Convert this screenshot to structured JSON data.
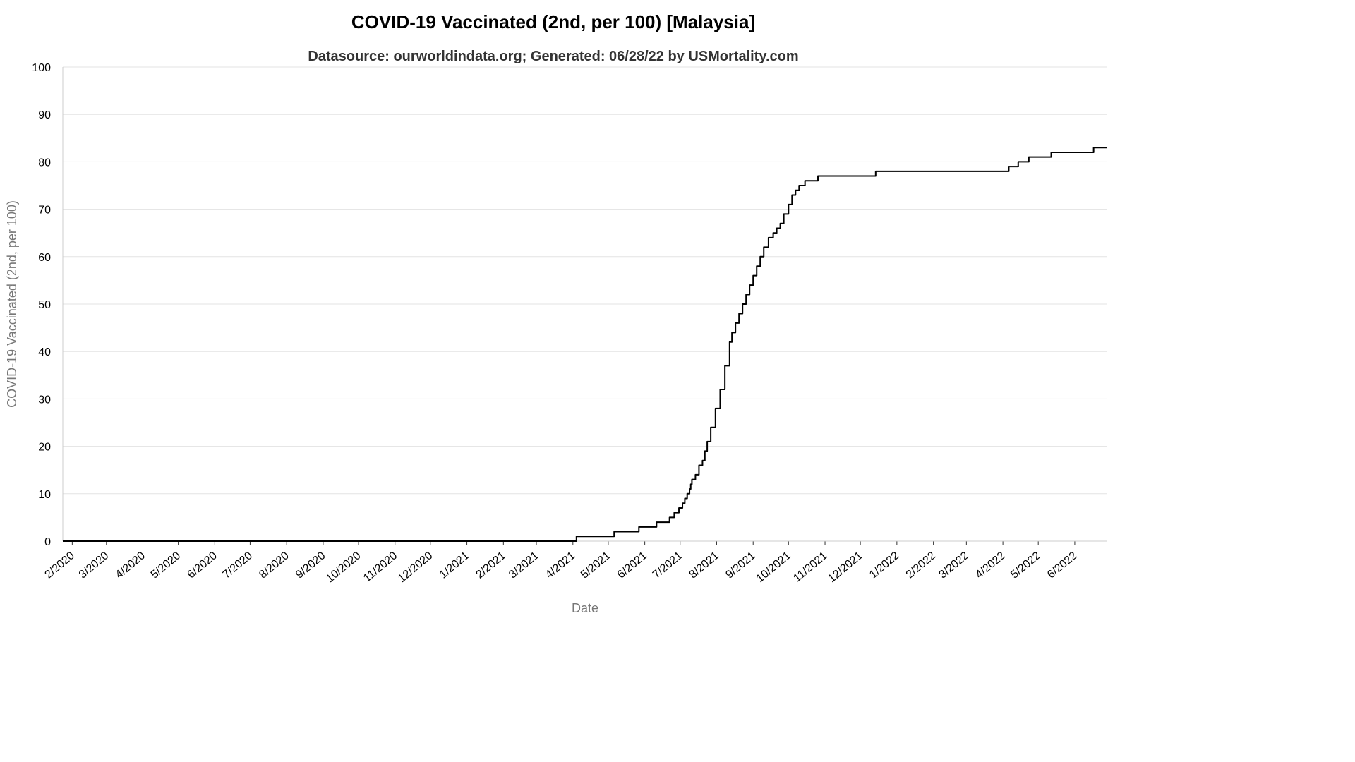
{
  "chart_data": {
    "type": "line",
    "title": "COVID-19 Vaccinated (2nd, per 100) [Malaysia]",
    "subtitle": "Datasource: ourworldindata.org; Generated: 06/28/22 by USMortality.com",
    "xlabel": "Date",
    "ylabel": "COVID-19 Vaccinated (2nd, per 100)",
    "ylim": [
      0,
      100
    ],
    "yticks": [
      0,
      10,
      20,
      30,
      40,
      50,
      60,
      70,
      80,
      90,
      100
    ],
    "xlim": [
      "2020-01-24",
      "2022-06-28"
    ],
    "xticks": [
      {
        "date": "2020-02-01",
        "label": "2/2020"
      },
      {
        "date": "2020-03-01",
        "label": "3/2020"
      },
      {
        "date": "2020-04-01",
        "label": "4/2020"
      },
      {
        "date": "2020-05-01",
        "label": "5/2020"
      },
      {
        "date": "2020-06-01",
        "label": "6/2020"
      },
      {
        "date": "2020-07-01",
        "label": "7/2020"
      },
      {
        "date": "2020-08-01",
        "label": "8/2020"
      },
      {
        "date": "2020-09-01",
        "label": "9/2020"
      },
      {
        "date": "2020-10-01",
        "label": "10/2020"
      },
      {
        "date": "2020-11-01",
        "label": "11/2020"
      },
      {
        "date": "2020-12-01",
        "label": "12/2020"
      },
      {
        "date": "2021-01-01",
        "label": "1/2021"
      },
      {
        "date": "2021-02-01",
        "label": "2/2021"
      },
      {
        "date": "2021-03-01",
        "label": "3/2021"
      },
      {
        "date": "2021-04-01",
        "label": "4/2021"
      },
      {
        "date": "2021-05-01",
        "label": "5/2021"
      },
      {
        "date": "2021-06-01",
        "label": "6/2021"
      },
      {
        "date": "2021-07-01",
        "label": "7/2021"
      },
      {
        "date": "2021-08-01",
        "label": "8/2021"
      },
      {
        "date": "2021-09-01",
        "label": "9/2021"
      },
      {
        "date": "2021-10-01",
        "label": "10/2021"
      },
      {
        "date": "2021-11-01",
        "label": "11/2021"
      },
      {
        "date": "2021-12-01",
        "label": "12/2021"
      },
      {
        "date": "2022-01-01",
        "label": "1/2022"
      },
      {
        "date": "2022-02-01",
        "label": "2/2022"
      },
      {
        "date": "2022-03-01",
        "label": "3/2022"
      },
      {
        "date": "2022-04-01",
        "label": "4/2022"
      },
      {
        "date": "2022-05-01",
        "label": "5/2022"
      },
      {
        "date": "2022-06-01",
        "label": "6/2022"
      }
    ],
    "grid": true,
    "legend": "none",
    "series": [
      {
        "color": "#000000",
        "step": true,
        "points": [
          {
            "x": "2020-01-24",
            "y": 0
          },
          {
            "x": "2021-04-03",
            "y": 0
          },
          {
            "x": "2021-04-04",
            "y": 1
          },
          {
            "x": "2021-05-06",
            "y": 2
          },
          {
            "x": "2021-05-27",
            "y": 3
          },
          {
            "x": "2021-06-11",
            "y": 4
          },
          {
            "x": "2021-06-22",
            "y": 5
          },
          {
            "x": "2021-06-26",
            "y": 6
          },
          {
            "x": "2021-06-30",
            "y": 7
          },
          {
            "x": "2021-07-03",
            "y": 8
          },
          {
            "x": "2021-07-05",
            "y": 9
          },
          {
            "x": "2021-07-07",
            "y": 10
          },
          {
            "x": "2021-07-09",
            "y": 11
          },
          {
            "x": "2021-07-10",
            "y": 12
          },
          {
            "x": "2021-07-11",
            "y": 13
          },
          {
            "x": "2021-07-14",
            "y": 14
          },
          {
            "x": "2021-07-17",
            "y": 16
          },
          {
            "x": "2021-07-20",
            "y": 17
          },
          {
            "x": "2021-07-22",
            "y": 19
          },
          {
            "x": "2021-07-24",
            "y": 21
          },
          {
            "x": "2021-07-27",
            "y": 24
          },
          {
            "x": "2021-07-31",
            "y": 28
          },
          {
            "x": "2021-08-04",
            "y": 32
          },
          {
            "x": "2021-08-08",
            "y": 37
          },
          {
            "x": "2021-08-12",
            "y": 42
          },
          {
            "x": "2021-08-14",
            "y": 44
          },
          {
            "x": "2021-08-17",
            "y": 46
          },
          {
            "x": "2021-08-20",
            "y": 48
          },
          {
            "x": "2021-08-23",
            "y": 50
          },
          {
            "x": "2021-08-26",
            "y": 52
          },
          {
            "x": "2021-08-29",
            "y": 54
          },
          {
            "x": "2021-09-01",
            "y": 56
          },
          {
            "x": "2021-09-04",
            "y": 58
          },
          {
            "x": "2021-09-07",
            "y": 60
          },
          {
            "x": "2021-09-10",
            "y": 62
          },
          {
            "x": "2021-09-14",
            "y": 64
          },
          {
            "x": "2021-09-18",
            "y": 65
          },
          {
            "x": "2021-09-21",
            "y": 66
          },
          {
            "x": "2021-09-24",
            "y": 67
          },
          {
            "x": "2021-09-27",
            "y": 69
          },
          {
            "x": "2021-10-01",
            "y": 71
          },
          {
            "x": "2021-10-04",
            "y": 73
          },
          {
            "x": "2021-10-07",
            "y": 74
          },
          {
            "x": "2021-10-10",
            "y": 75
          },
          {
            "x": "2021-10-15",
            "y": 76
          },
          {
            "x": "2021-10-26",
            "y": 77
          },
          {
            "x": "2021-12-14",
            "y": 78
          },
          {
            "x": "2022-04-06",
            "y": 79
          },
          {
            "x": "2022-04-14",
            "y": 80
          },
          {
            "x": "2022-04-23",
            "y": 81
          },
          {
            "x": "2022-05-12",
            "y": 82
          },
          {
            "x": "2022-06-17",
            "y": 83
          },
          {
            "x": "2022-06-28",
            "y": 83
          }
        ]
      }
    ]
  }
}
